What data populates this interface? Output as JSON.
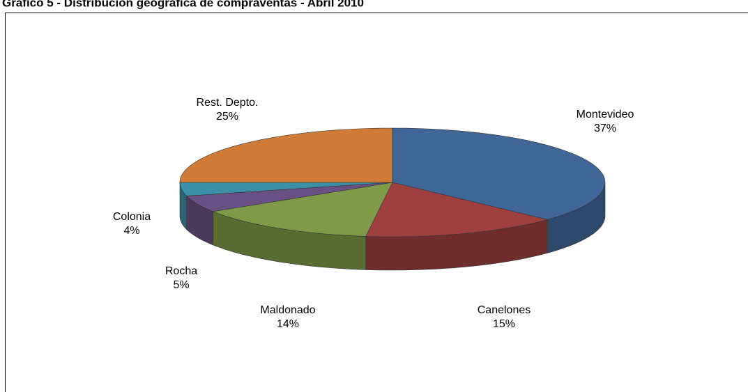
{
  "chart_data": {
    "type": "pie3d",
    "title": "Gráfico 5 - Distribución geográfica de compraventas - Abril 2010",
    "categories": [
      "Montevideo",
      "Canelones",
      "Maldonado",
      "Rocha",
      "Colonia",
      "Rest. Depto."
    ],
    "values": [
      37,
      15,
      14,
      5,
      4,
      25
    ],
    "value_labels": [
      "37%",
      "15%",
      "14%",
      "5%",
      "4%",
      "25%"
    ],
    "colors": [
      "#3f6797",
      "#9e413e",
      "#7f9a48",
      "#695185",
      "#3b8fa7",
      "#d07b37"
    ]
  }
}
